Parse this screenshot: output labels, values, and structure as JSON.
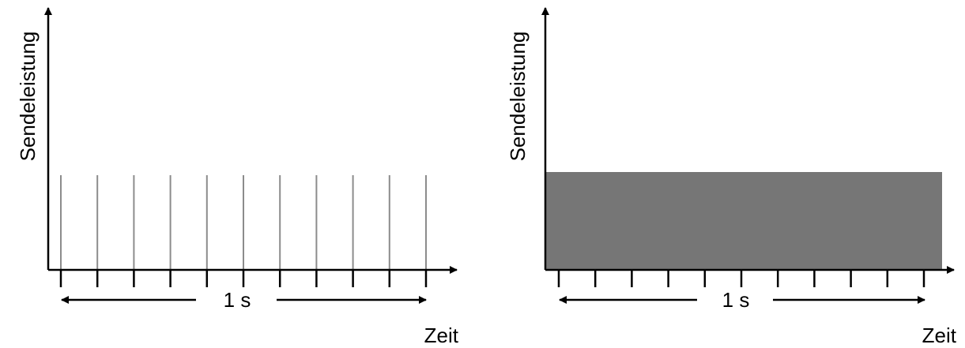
{
  "panels": [
    {
      "ylabel": "Sendeleistung",
      "xlabel": "Zeit",
      "span_label": "1 s",
      "signal": "pulses",
      "pulse_count": 11,
      "pulse_color": "#8c8c8c"
    },
    {
      "ylabel": "Sendeleistung",
      "xlabel": "Zeit",
      "span_label": "1 s",
      "signal": "continuous",
      "fill_color": "#767676"
    }
  ]
}
